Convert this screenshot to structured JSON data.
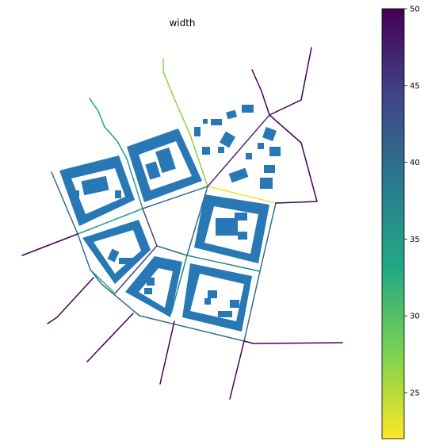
{
  "title": "width",
  "colors": {
    "buildings": "#2778b5",
    "cmap_stops": [
      "#fde725",
      "#7ad151",
      "#22a884",
      "#2a788e",
      "#414487",
      "#440154"
    ]
  },
  "colorbar": {
    "min": 22,
    "max": 50,
    "ticks": [
      {
        "value": 25,
        "label": "25"
      },
      {
        "value": 30,
        "label": "30"
      },
      {
        "value": 35,
        "label": "35"
      },
      {
        "value": 40,
        "label": "40"
      },
      {
        "value": 45,
        "label": "45"
      },
      {
        "value": 50,
        "label": "50"
      }
    ]
  },
  "streets": [
    {
      "id": "street-north-green",
      "width": 27
    },
    {
      "id": "street-northwest-teal",
      "width": 34
    },
    {
      "id": "street-east-yellow",
      "width": 22.5
    },
    {
      "id": "street-center-west",
      "width": 40
    },
    {
      "id": "street-west-link",
      "width": 34
    },
    {
      "id": "street-ring-west",
      "width": 40
    },
    {
      "id": "street-ring-southwest",
      "width": 40
    },
    {
      "id": "street-ring-south",
      "width": 40
    },
    {
      "id": "street-ring-southeast",
      "width": 40
    },
    {
      "id": "street-ring-east",
      "width": 40
    },
    {
      "id": "street-mid-vertical",
      "width": 37
    },
    {
      "id": "street-mid-horizontal",
      "width": 37
    },
    {
      "id": "street-center-link",
      "width": 40
    },
    {
      "id": "street-ring-west-inner",
      "width": 44
    },
    {
      "id": "street-southwest-link",
      "width": 34
    },
    {
      "id": "street-outer-west",
      "width": 50
    },
    {
      "id": "street-outer-southwest",
      "width": 50
    },
    {
      "id": "street-outer-south-left",
      "width": 50
    },
    {
      "id": "street-outer-south-right",
      "width": 50
    },
    {
      "id": "street-outer-east",
      "width": 50
    },
    {
      "id": "street-outer-northeast",
      "width": 50
    },
    {
      "id": "street-outer-north",
      "width": 50
    },
    {
      "id": "street-north-inner",
      "width": 46
    }
  ]
}
